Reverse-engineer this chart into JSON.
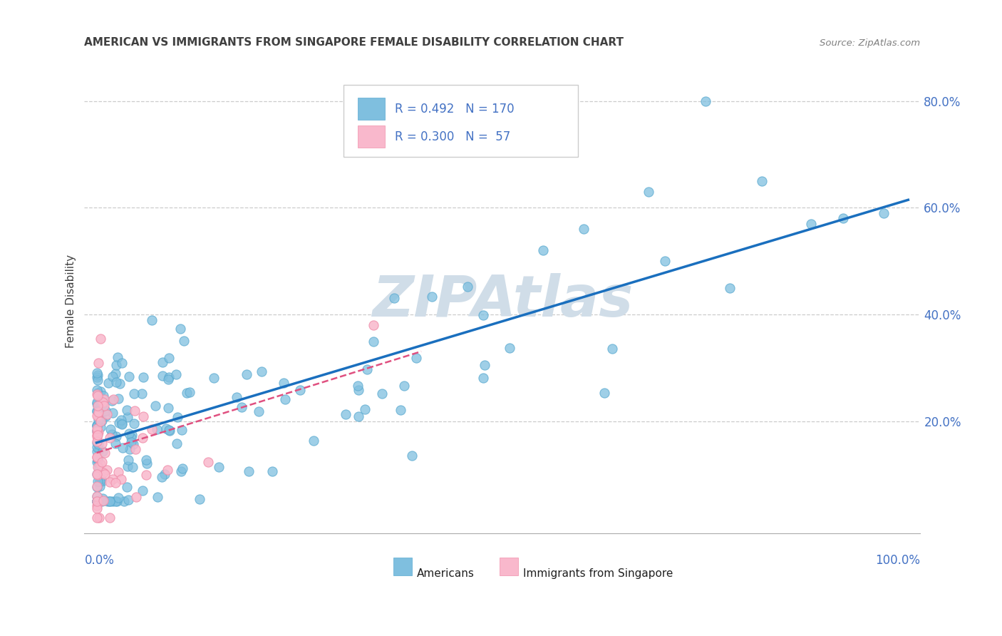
{
  "title": "AMERICAN VS IMMIGRANTS FROM SINGAPORE FEMALE DISABILITY CORRELATION CHART",
  "source": "Source: ZipAtlas.com",
  "ylabel": "Female Disability",
  "american_color": "#7fbfdf",
  "american_edge_color": "#5aaad0",
  "singapore_color": "#f9b8cc",
  "singapore_edge_color": "#f090ab",
  "trendline_american_color": "#1a6fbe",
  "trendline_singapore_color": "#e05080",
  "watermark_color": "#d0dde8",
  "xlim": [
    0.0,
    1.0
  ],
  "ylim": [
    0.0,
    0.86
  ],
  "ytick_positions": [
    0.2,
    0.4,
    0.6,
    0.8
  ],
  "ytick_labels": [
    "20.0%",
    "40.0%",
    "60.0%",
    "80.0%"
  ],
  "background_color": "#ffffff",
  "grid_color": "#cccccc",
  "legend_r1": "R = 0.492",
  "legend_n1": "N = 170",
  "legend_r2": "R = 0.300",
  "legend_n2": "N =  57",
  "axis_label_color": "#4472c4",
  "title_color": "#404040",
  "source_color": "#808080"
}
